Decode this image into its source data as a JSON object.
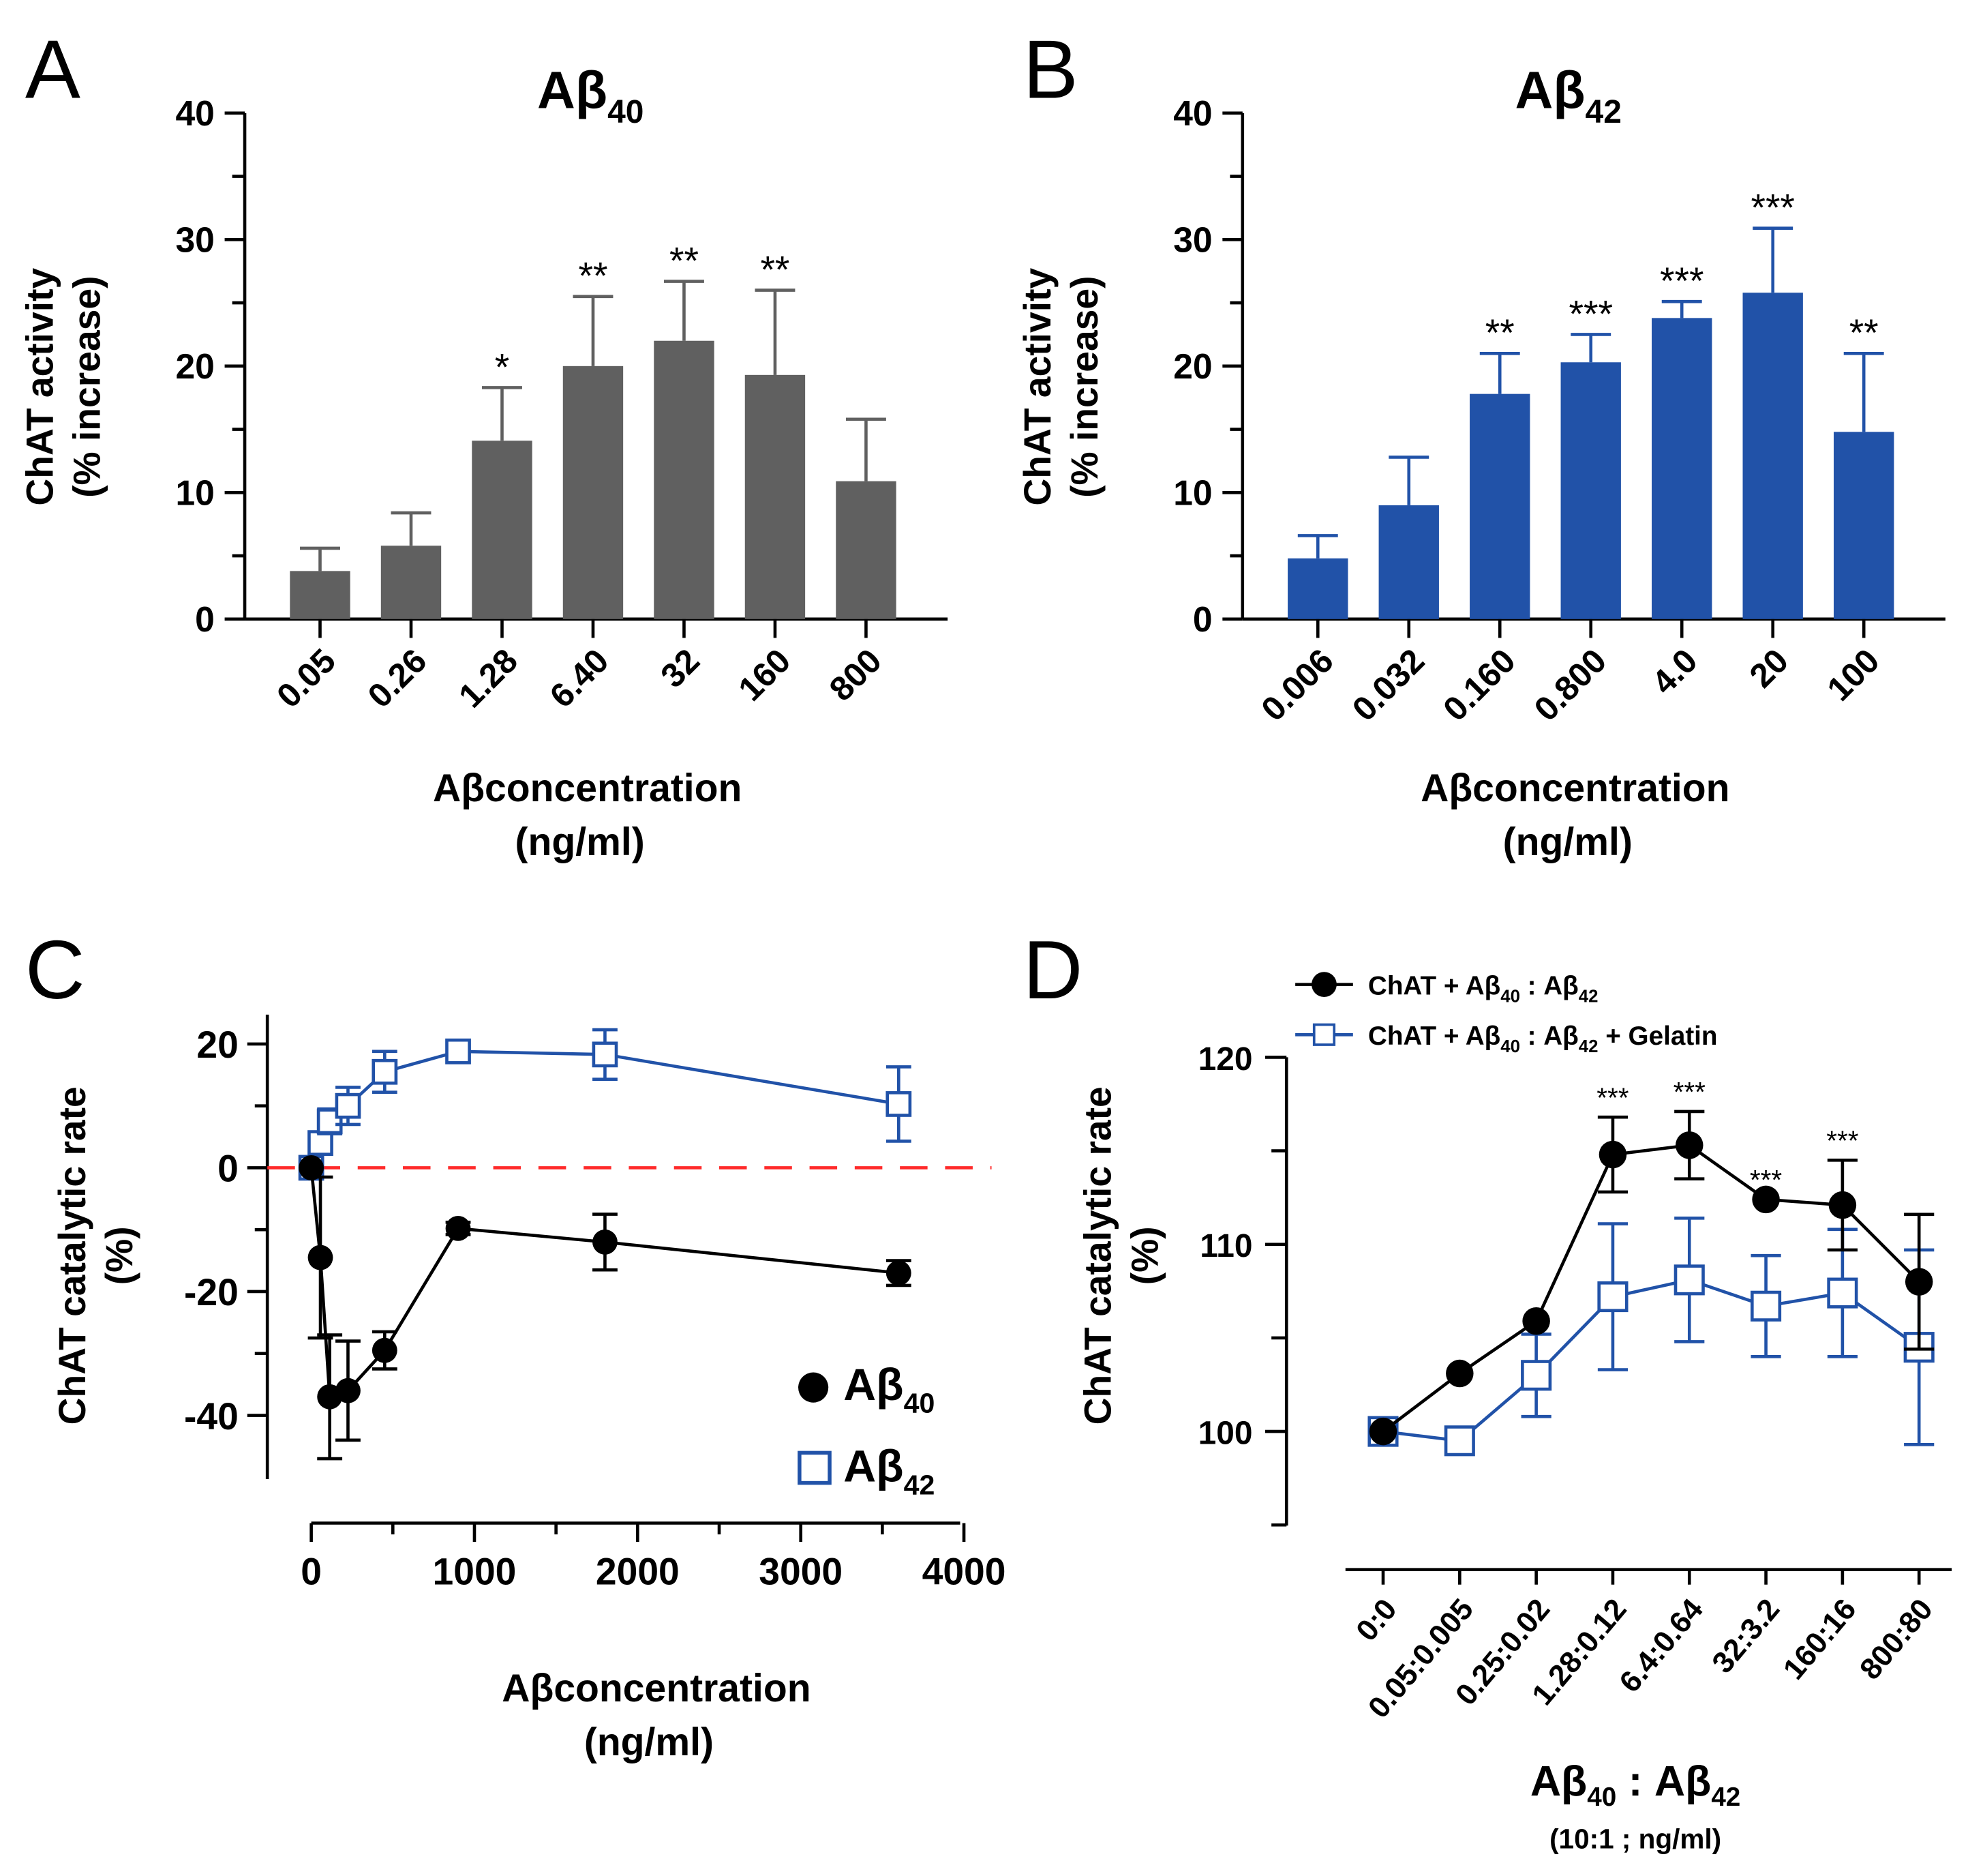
{
  "colors": {
    "gray_bar": "#606060",
    "blue": "#2152a8",
    "black": "#000000",
    "reference_line": "#ff2a2a"
  },
  "chart_data": [
    {
      "panel_letter": "A",
      "type": "bar",
      "title_main": "Aβ",
      "title_sub": "40",
      "ylabel_line1": "ChAT activity",
      "ylabel_line2": "(% increase)",
      "xlabel_line1": "Aβconcentration",
      "xlabel_line2": "(ng/ml)",
      "categories": [
        "0.05",
        "0.26",
        "1.28",
        "6.40",
        "32",
        "160",
        "800"
      ],
      "values": [
        3.8,
        5.8,
        14.1,
        20.0,
        22.0,
        19.3,
        10.9
      ],
      "errors": [
        1.8,
        2.6,
        4.2,
        5.5,
        4.7,
        6.7,
        4.9
      ],
      "significance": [
        "",
        "",
        "*",
        "**",
        "**",
        "**",
        ""
      ],
      "ylim": [
        0,
        40
      ],
      "yticks": [
        0,
        10,
        20,
        30,
        40
      ],
      "color": "#606060"
    },
    {
      "panel_letter": "B",
      "type": "bar",
      "title_main": "Aβ",
      "title_sub": "42",
      "ylabel_line1": "ChAT activity",
      "ylabel_line2": "(% increase)",
      "xlabel_line1": "Aβconcentration",
      "xlabel_line2": "(ng/ml)",
      "categories": [
        "0.006",
        "0.032",
        "0.160",
        "0.800",
        "4.0",
        "20",
        "100"
      ],
      "values": [
        4.8,
        9.0,
        17.8,
        20.3,
        23.8,
        25.8,
        14.8
      ],
      "errors": [
        1.8,
        3.8,
        3.2,
        2.2,
        1.3,
        5.1,
        6.2
      ],
      "significance": [
        "",
        "",
        "**",
        "***",
        "***",
        "***",
        "**"
      ],
      "ylim": [
        0,
        40
      ],
      "yticks": [
        0,
        10,
        20,
        30,
        40
      ],
      "color": "#2152a8"
    },
    {
      "panel_letter": "C",
      "type": "line",
      "ylabel_line1": "ChAT catalytic rate",
      "ylabel_line2": "(%)",
      "xlabel_line1": "Aβconcentration",
      "xlabel_line2": "(ng/ml)",
      "xlim": [
        0,
        4000
      ],
      "xticks": [
        0,
        1000,
        2000,
        3000,
        4000
      ],
      "ylim": [
        -49,
        25
      ],
      "yticks": [
        20,
        0,
        -20,
        -40
      ],
      "reference_line_y": 0,
      "legend_placement": "bottom-right",
      "series": [
        {
          "name_main": "Aβ",
          "name_sub": "40",
          "marker": "filled-circle",
          "color": "#000000",
          "x": [
            0,
            56,
            113,
            225,
            450,
            900,
            1800,
            3600
          ],
          "y": [
            0,
            -14.5,
            -37,
            -36,
            -29.5,
            -9.8,
            -12,
            -17
          ],
          "errors": [
            0,
            13,
            10,
            8,
            3,
            1,
            4.5,
            2
          ]
        },
        {
          "name_main": "Aβ",
          "name_sub": "42",
          "marker": "open-square",
          "color": "#2152a8",
          "x": [
            0,
            56,
            113,
            225,
            450,
            900,
            1800,
            3600
          ],
          "y": [
            0,
            4,
            7.5,
            10,
            15.5,
            18.8,
            18.3,
            10.3
          ],
          "errors": [
            0,
            1.5,
            2,
            3,
            3.3,
            0.8,
            4,
            6
          ]
        }
      ]
    },
    {
      "panel_letter": "D",
      "type": "line",
      "ylabel_line1": "ChAT catalytic rate",
      "ylabel_line2": "(%)",
      "xlabel_a": "Aβ",
      "xlabel_a_sub": "40",
      "xlabel_sep": " : ",
      "xlabel_b": "Aβ",
      "xlabel_b_sub": "42",
      "xlabel_line2": "(10:1 ; ng/ml)",
      "categories": [
        "0:0",
        "0.05:0.005",
        "0.25:0.02",
        "1.28:0.12",
        "6.4:0.64",
        "32:3.2",
        "160:16",
        "800:80"
      ],
      "ylim": [
        92.5,
        120
      ],
      "yticks": [
        100,
        110,
        120
      ],
      "legend_placement": "top-left",
      "series": [
        {
          "legend": [
            "ChAT + Aβ",
            "40",
            " : Aβ",
            "42",
            ""
          ],
          "marker": "filled-circle",
          "color": "#000000",
          "y": [
            100,
            103.1,
            105.9,
            114.8,
            115.3,
            112.4,
            112.1,
            108.0
          ],
          "errors": [
            0,
            0,
            0,
            2.0,
            1.8,
            0,
            2.4,
            3.6
          ],
          "significance": [
            "",
            "",
            "",
            "***",
            "***",
            "***",
            "***",
            ""
          ]
        },
        {
          "legend": [
            "ChAT + Aβ",
            "40",
            " : Aβ",
            "42",
            " + Gelatin"
          ],
          "marker": "open-square",
          "color": "#2152a8",
          "y": [
            100,
            99.5,
            103.0,
            107.2,
            108.1,
            106.7,
            107.4,
            104.5
          ],
          "errors": [
            0,
            0,
            2.2,
            3.9,
            3.3,
            2.7,
            3.4,
            5.2
          ]
        }
      ]
    }
  ]
}
